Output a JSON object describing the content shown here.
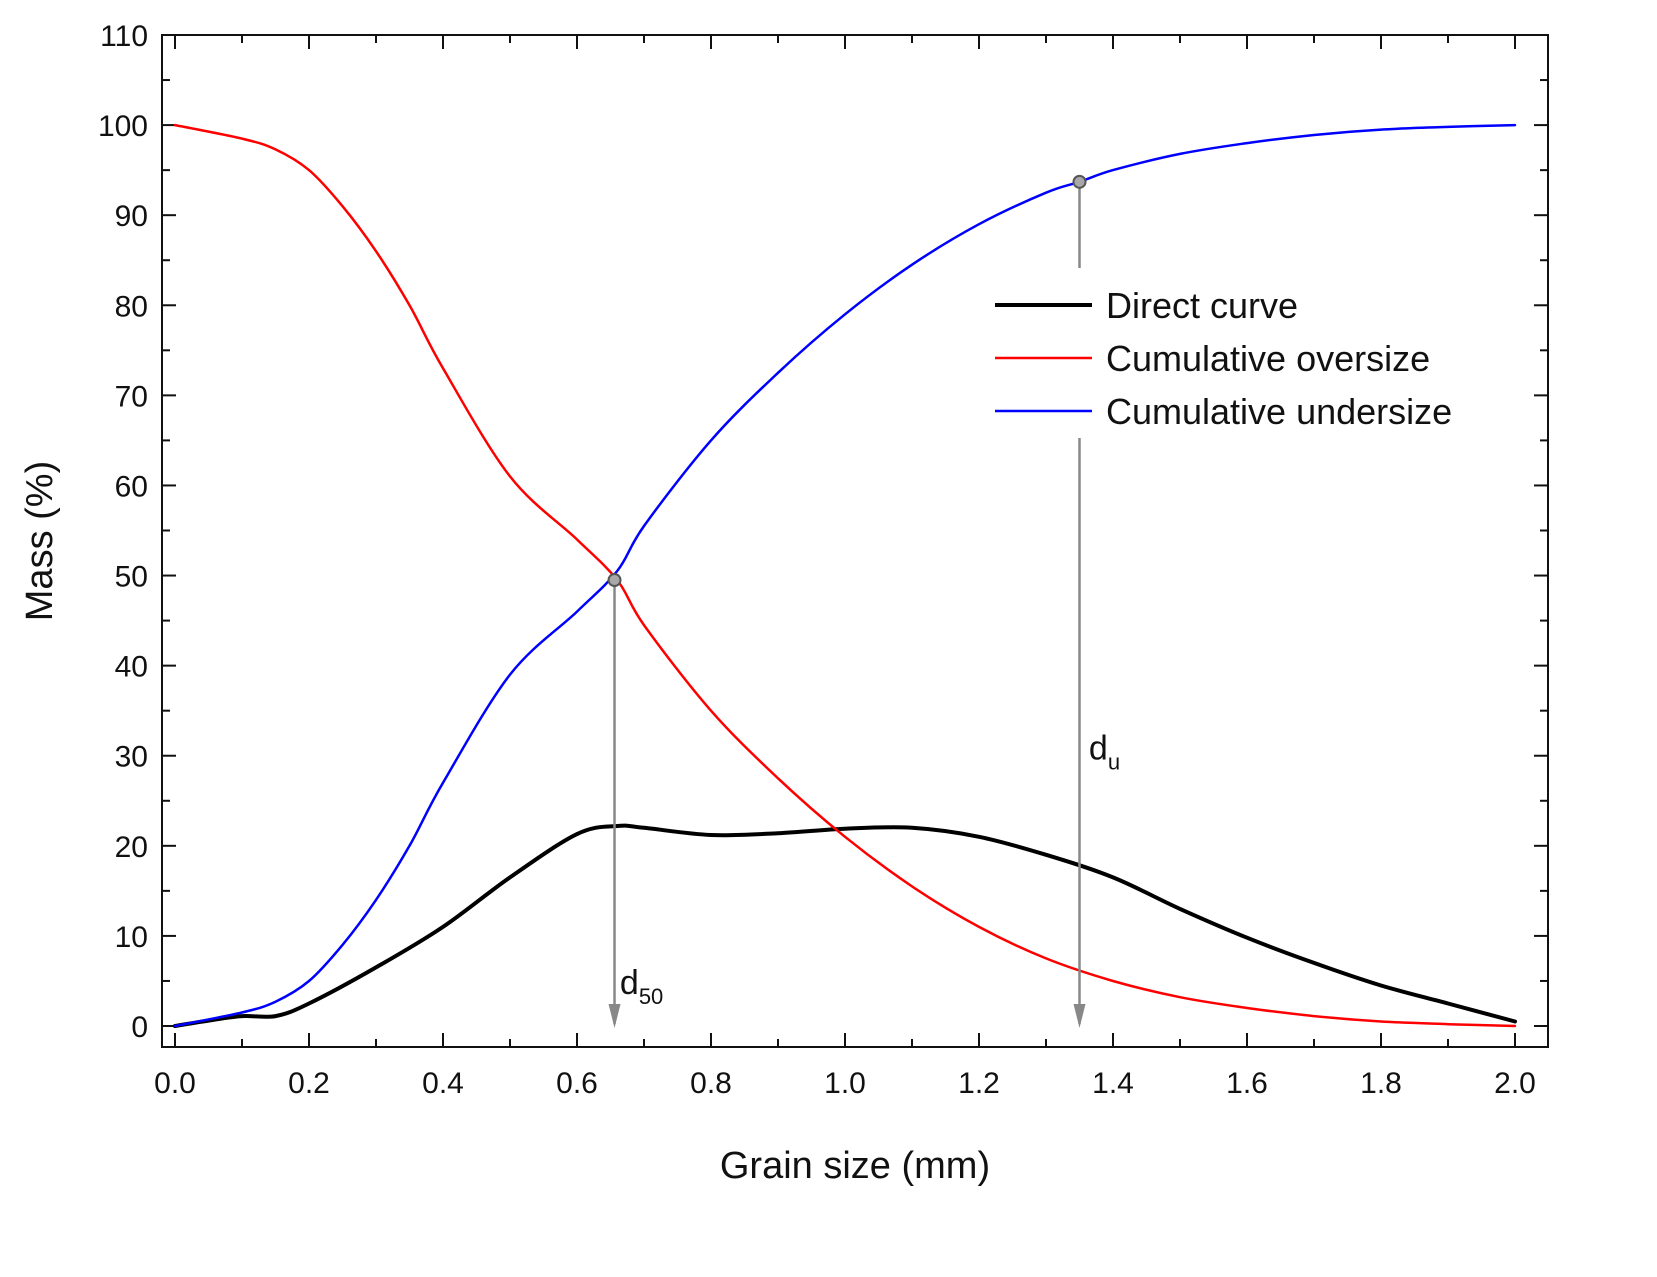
{
  "chart_data": {
    "type": "line",
    "title": "",
    "xlabel": "Grain size (mm)",
    "ylabel": "Mass (%)",
    "xlim": [
      0,
      2.0
    ],
    "ylim": [
      0,
      110
    ],
    "x_ticks": [
      "0.0",
      "0.2",
      "0.4",
      "0.6",
      "0.8",
      "1.0",
      "1.2",
      "1.4",
      "1.6",
      "1.8",
      "2.0"
    ],
    "y_ticks": [
      "0",
      "10",
      "20",
      "30",
      "40",
      "50",
      "60",
      "70",
      "80",
      "90",
      "100",
      "110"
    ],
    "grid": false,
    "legend_position": "right",
    "series": [
      {
        "name": "Direct curve",
        "color": "#000000",
        "points": [
          [
            0.0,
            0.0
          ],
          [
            0.05,
            0.6
          ],
          [
            0.1,
            1.1
          ],
          [
            0.15,
            1.1
          ],
          [
            0.2,
            2.5
          ],
          [
            0.3,
            6.5
          ],
          [
            0.4,
            11.0
          ],
          [
            0.5,
            16.5
          ],
          [
            0.6,
            21.3
          ],
          [
            0.66,
            22.2
          ],
          [
            0.7,
            22.0
          ],
          [
            0.8,
            21.2
          ],
          [
            0.9,
            21.4
          ],
          [
            1.0,
            21.9
          ],
          [
            1.1,
            22.0
          ],
          [
            1.2,
            21.0
          ],
          [
            1.3,
            19.0
          ],
          [
            1.4,
            16.5
          ],
          [
            1.5,
            13.0
          ],
          [
            1.6,
            9.8
          ],
          [
            1.7,
            7.0
          ],
          [
            1.8,
            4.5
          ],
          [
            1.9,
            2.5
          ],
          [
            2.0,
            0.5
          ]
        ]
      },
      {
        "name": "Cumulative oversize",
        "color": "#ff0000",
        "points": [
          [
            0.0,
            100.0
          ],
          [
            0.1,
            98.5
          ],
          [
            0.15,
            97.3
          ],
          [
            0.2,
            95.0
          ],
          [
            0.25,
            91.0
          ],
          [
            0.3,
            86.0
          ],
          [
            0.35,
            80.0
          ],
          [
            0.4,
            73.0
          ],
          [
            0.5,
            61.0
          ],
          [
            0.6,
            54.0
          ],
          [
            0.66,
            49.5
          ],
          [
            0.7,
            44.5
          ],
          [
            0.8,
            35.0
          ],
          [
            0.9,
            27.5
          ],
          [
            1.0,
            21.0
          ],
          [
            1.1,
            15.5
          ],
          [
            1.2,
            11.0
          ],
          [
            1.3,
            7.5
          ],
          [
            1.4,
            5.0
          ],
          [
            1.5,
            3.2
          ],
          [
            1.6,
            2.0
          ],
          [
            1.7,
            1.1
          ],
          [
            1.8,
            0.5
          ],
          [
            1.9,
            0.2
          ],
          [
            2.0,
            0.0
          ]
        ]
      },
      {
        "name": "Cumulative undersize",
        "color": "#0000ff",
        "points": [
          [
            0.0,
            0.0
          ],
          [
            0.1,
            1.5
          ],
          [
            0.15,
            2.7
          ],
          [
            0.2,
            5.0
          ],
          [
            0.25,
            9.0
          ],
          [
            0.3,
            14.0
          ],
          [
            0.35,
            20.0
          ],
          [
            0.4,
            27.0
          ],
          [
            0.5,
            39.0
          ],
          [
            0.6,
            46.0
          ],
          [
            0.66,
            50.5
          ],
          [
            0.7,
            55.5
          ],
          [
            0.8,
            65.0
          ],
          [
            0.9,
            72.5
          ],
          [
            1.0,
            79.0
          ],
          [
            1.1,
            84.5
          ],
          [
            1.2,
            89.0
          ],
          [
            1.3,
            92.5
          ],
          [
            1.35,
            93.7
          ],
          [
            1.4,
            95.0
          ],
          [
            1.5,
            96.8
          ],
          [
            1.6,
            98.0
          ],
          [
            1.7,
            98.9
          ],
          [
            1.8,
            99.5
          ],
          [
            1.9,
            99.8
          ],
          [
            2.0,
            100.0
          ]
        ]
      }
    ],
    "markers": [
      {
        "name": "d50",
        "x": 0.656,
        "y": 49.5,
        "arrow_to": 0
      },
      {
        "name": "du",
        "x": 1.35,
        "y": 93.7,
        "arrow_to": 0
      }
    ],
    "annotations": {
      "d50": {
        "main": "d",
        "sub": "50",
        "x": 0.67,
        "y": 4
      },
      "du": {
        "main": "d",
        "sub": "u",
        "x": 1.37,
        "y": 30
      }
    },
    "legend": {
      "entries": [
        "Direct curve",
        "Cumulative oversize",
        "Cumulative undersize"
      ]
    }
  }
}
